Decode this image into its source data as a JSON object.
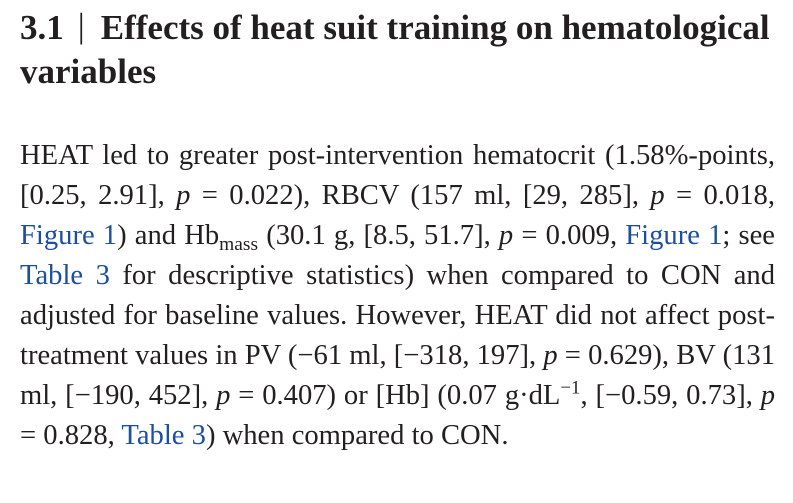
{
  "section": {
    "number": "3.1",
    "separator": "|",
    "title": "Effects of heat suit training on hematological variables"
  },
  "paragraph": {
    "s1": "HEAT led to greater post-intervention hematocrit (1.58%-points, [0.25, 2.91], ",
    "p": "p",
    "s2": " = 0.022), RBCV (157 ml, [29, 285], ",
    "s3": " = 0.018, ",
    "figure_link": "Figure 1",
    "s4": ") and Hb",
    "mass_subscript": "mass",
    "s5": " (30.1 g, [8.5, 51.7], ",
    "s6": " = 0.009, ",
    "s7": "; see ",
    "table_link": "Table 3",
    "s8": " for descriptive statistics) when compared to CON and adjusted for baseline values. However, HEAT did not affect post-treatment values in PV (−61 ml, [−318, 197], ",
    "s9": " = 0.629), BV (131 ml, [−190, 452], ",
    "s10": " = 0.407) or [Hb] (0.07 g·dL",
    "superscript": "−1",
    "s11": ", [−0.59, 0.73], ",
    "s12": " = 0.828, ",
    "s13": ") when compared to CON."
  }
}
